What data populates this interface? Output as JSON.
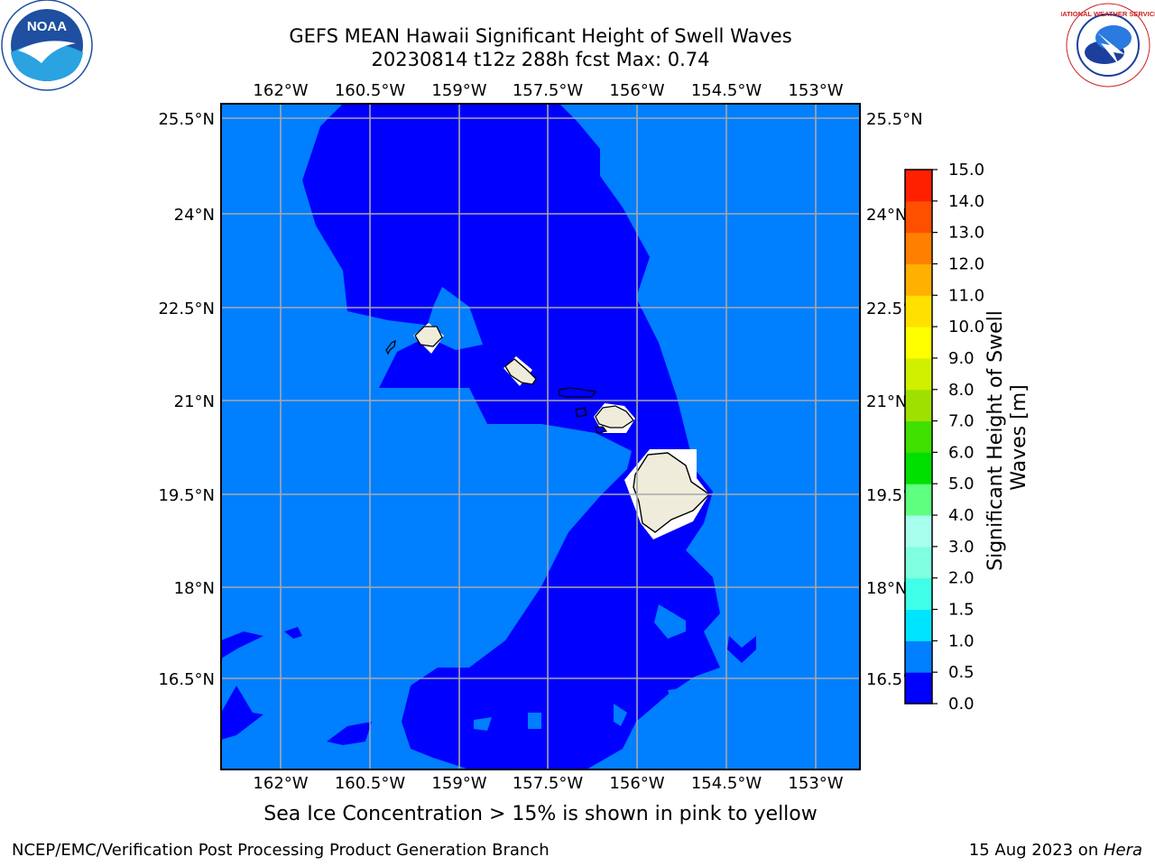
{
  "header": {
    "title_line1": "GEFS MEAN Hawaii Significant Height of Swell Waves",
    "title_line2": "20230814 t12z 288h fcst   Max: 0.74"
  },
  "map": {
    "lon_labels": [
      "162°W",
      "160.5°W",
      "159°W",
      "157.5°W",
      "156°W",
      "154.5°W",
      "153°W"
    ],
    "lat_labels": [
      "25.5°N",
      "24°N",
      "22.5°N",
      "21°N",
      "19.5°N",
      "18°N",
      "16.5°N"
    ],
    "ocean_colors": {
      "low": "#0000ff",
      "mid": "#007fff"
    },
    "land_color": "#efecdc"
  },
  "colorbar": {
    "label": "Significant Height of Swell Waves [m]",
    "ticks": [
      "0.0",
      "0.5",
      "1.0",
      "1.5",
      "2.0",
      "3.0",
      "4.0",
      "5.0",
      "6.0",
      "7.0",
      "8.0",
      "9.0",
      "10.0",
      "11.0",
      "12.0",
      "13.0",
      "14.0",
      "15.0"
    ],
    "colors": [
      "#0000ff",
      "#007fff",
      "#00e5ff",
      "#40ffe8",
      "#7fffe0",
      "#a8ffee",
      "#5fff7f",
      "#00e000",
      "#40e000",
      "#a0e000",
      "#d0f000",
      "#ffff00",
      "#ffe000",
      "#ffb000",
      "#ff8000",
      "#ff5000",
      "#ff2000",
      "#ff0000"
    ]
  },
  "caption": "Sea Ice Concentration > 15% is shown in pink to yellow",
  "footer": {
    "left": "NCEP/EMC/Verification Post Processing Product Generation Branch",
    "date": "15 Aug 2023 on ",
    "host": "Hera"
  },
  "logos": {
    "noaa_text": "NOAA",
    "nws_text": "NATIONAL WEATHER SERVICE"
  }
}
